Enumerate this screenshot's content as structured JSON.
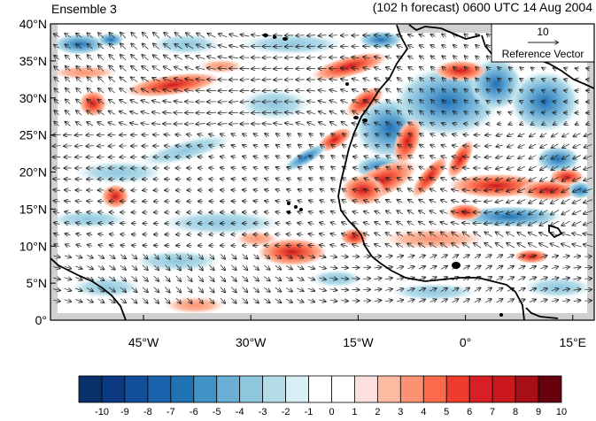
{
  "header": {
    "ensemble": "Ensemble 3",
    "forecast": "(102 h forecast) 0600 UTC 14 Aug 2004"
  },
  "map": {
    "lat_labels": [
      "40°N",
      "35°N",
      "30°N",
      "25°N",
      "20°N",
      "15°N",
      "10°N",
      "5°N",
      "0°"
    ],
    "lon_labels": [
      "45°W",
      "30°W",
      "15°W",
      "0°",
      "15°E"
    ],
    "reference_vector": {
      "value": "10",
      "label": "Reference Vector"
    },
    "extent": {
      "lon": [
        -58,
        18
      ],
      "lat": [
        0,
        40
      ]
    }
  },
  "colorbar": {
    "labels": [
      "-10",
      "-9",
      "-8",
      "-7",
      "-6",
      "-5",
      "-4",
      "-3",
      "-2",
      "-1",
      "0",
      "1",
      "2",
      "3",
      "4",
      "5",
      "6",
      "7",
      "8",
      "9",
      "10"
    ],
    "colors": [
      "#08306b",
      "#0b3a80",
      "#124f9a",
      "#1a63ac",
      "#2171b5",
      "#4292c6",
      "#6baed6",
      "#8fc7df",
      "#b3dbe8",
      "#d8eef5",
      "#ffffff",
      "#ffffff",
      "#fde0dd",
      "#fcbba1",
      "#fc9272",
      "#fb6a4a",
      "#ef3b2c",
      "#d91f26",
      "#cb181d",
      "#a50f15",
      "#67000d"
    ]
  }
}
